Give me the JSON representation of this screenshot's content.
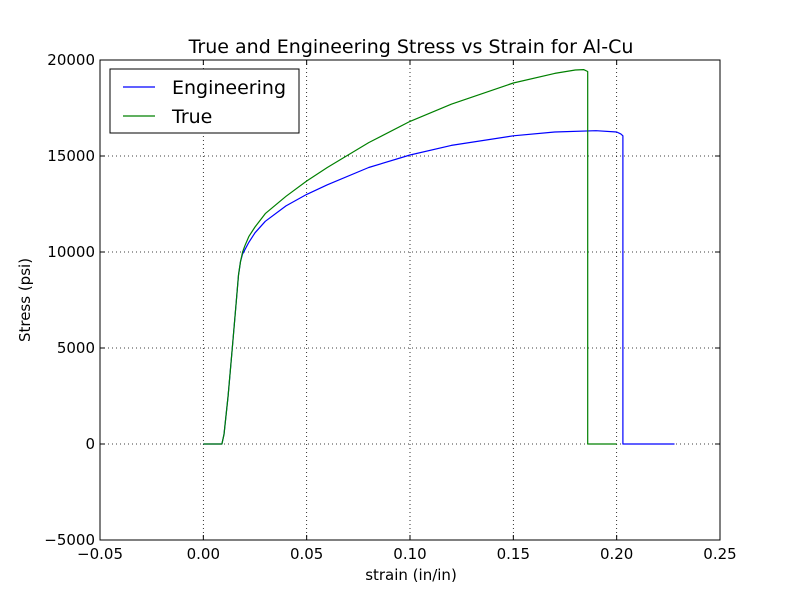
{
  "chart_data": {
    "type": "line",
    "title": "True and Engineering Stress vs Strain for Al-Cu",
    "xlabel": "strain (in/in)",
    "ylabel": "Stress (psi)",
    "xlim": [
      -0.05,
      0.25
    ],
    "ylim": [
      -5000,
      20000
    ],
    "xticks": [
      -0.05,
      0.0,
      0.05,
      0.1,
      0.15,
      0.2,
      0.25
    ],
    "xtick_labels": [
      "−0.05",
      "0.00",
      "0.05",
      "0.10",
      "0.15",
      "0.20",
      "0.25"
    ],
    "yticks": [
      -5000,
      0,
      5000,
      10000,
      15000,
      20000
    ],
    "ytick_labels": [
      "−5000",
      "0",
      "5000",
      "10000",
      "15000",
      "20000"
    ],
    "grid": true,
    "legend_position": "top-left",
    "series": [
      {
        "name": "Engineering",
        "color": "#0000ff",
        "x": [
          0.0,
          0.009,
          0.01,
          0.012,
          0.014,
          0.016,
          0.017,
          0.018,
          0.019,
          0.02,
          0.022,
          0.025,
          0.03,
          0.04,
          0.05,
          0.06,
          0.08,
          0.1,
          0.12,
          0.15,
          0.17,
          0.19,
          0.2,
          0.202,
          0.203,
          0.203,
          0.21,
          0.228
        ],
        "y": [
          0,
          0,
          500,
          2500,
          5000,
          7500,
          8800,
          9500,
          9900,
          10100,
          10500,
          11000,
          11600,
          12400,
          13000,
          13500,
          14400,
          15050,
          15550,
          16050,
          16250,
          16320,
          16250,
          16150,
          16050,
          0,
          0,
          0
        ]
      },
      {
        "name": "True",
        "color": "#008000",
        "x": [
          0.0,
          0.009,
          0.01,
          0.012,
          0.014,
          0.016,
          0.017,
          0.018,
          0.019,
          0.02,
          0.022,
          0.025,
          0.03,
          0.04,
          0.05,
          0.06,
          0.08,
          0.1,
          0.12,
          0.15,
          0.17,
          0.18,
          0.184,
          0.186,
          0.186,
          0.19,
          0.2
        ],
        "y": [
          0,
          0,
          500,
          2500,
          5000,
          7500,
          8800,
          9500,
          10000,
          10300,
          10800,
          11300,
          12000,
          12900,
          13700,
          14400,
          15700,
          16800,
          17700,
          18800,
          19300,
          19480,
          19500,
          19400,
          0,
          0,
          0
        ]
      }
    ]
  }
}
